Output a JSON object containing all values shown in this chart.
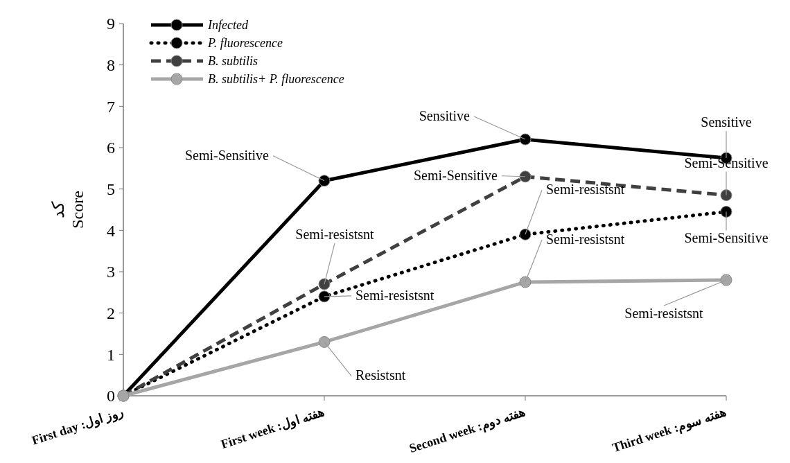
{
  "chart_data": {
    "type": "line",
    "ylabel": "کد\nScore",
    "categories": [
      "روز اول: First day",
      "هفته اول: First week",
      "هفته دوم: Second week",
      "هفته سوم: Third week"
    ],
    "series": [
      {
        "name": "Infected",
        "color": "#000000",
        "line_style": "solid",
        "values": [
          0,
          5.2,
          6.2,
          5.75
        ]
      },
      {
        "name": "P. fluorescence",
        "color": "#000000",
        "line_style": "dotted",
        "values": [
          0,
          2.4,
          3.9,
          4.45
        ]
      },
      {
        "name": "B. subtilis",
        "color": "#404040",
        "line_style": "dashed",
        "values": [
          0,
          2.7,
          5.3,
          4.85
        ]
      },
      {
        "name": "B. subtilis+ P. fluorescence",
        "color": "#a6a6a6",
        "line_style": "solid",
        "values": [
          0,
          1.3,
          2.75,
          2.8
        ]
      }
    ],
    "ylim": [
      0,
      9
    ],
    "yticks": [
      0,
      1,
      2,
      3,
      4,
      5,
      6,
      7,
      8,
      9
    ],
    "grid": false,
    "legend": "top left",
    "marker": "circle",
    "annotations": [
      {
        "text": "Semi-Sensitive",
        "x": "هفته اول: First week",
        "y": 5.2
      },
      {
        "text": "Sensitive",
        "x": "هفته دوم: Second week",
        "y": 6.2
      },
      {
        "text": "Sensitive",
        "x": "هفته سوم: Third week",
        "y": 5.75
      },
      {
        "text": "Semi-resistsnt",
        "x": "هفته اول: First week",
        "y": 2.7
      },
      {
        "text": "Semi-resistsnt",
        "x": "هفته اول: First week",
        "y": 2.4
      },
      {
        "text": "Resistsnt",
        "x": "هفته اول: First week",
        "y": 1.3
      },
      {
        "text": "Semi-Sensitive",
        "x": "هفته دوم: Second week",
        "y": 5.3
      },
      {
        "text": "Semi-resistsnt",
        "x": "هفته دوم: Second week",
        "y": 3.9
      },
      {
        "text": "Semi-resistsnt",
        "x": "هفته دوم: Second week",
        "y": 2.75
      },
      {
        "text": "Semi-Sensitive",
        "x": "هفته سوم: Third week",
        "y": 4.85
      },
      {
        "text": "Semi-Sensitive",
        "x": "هفته سوم: Third week",
        "y": 4.45
      },
      {
        "text": "Semi-resistsnt",
        "x": "هفته سوم: Third week",
        "y": 2.8
      }
    ]
  }
}
